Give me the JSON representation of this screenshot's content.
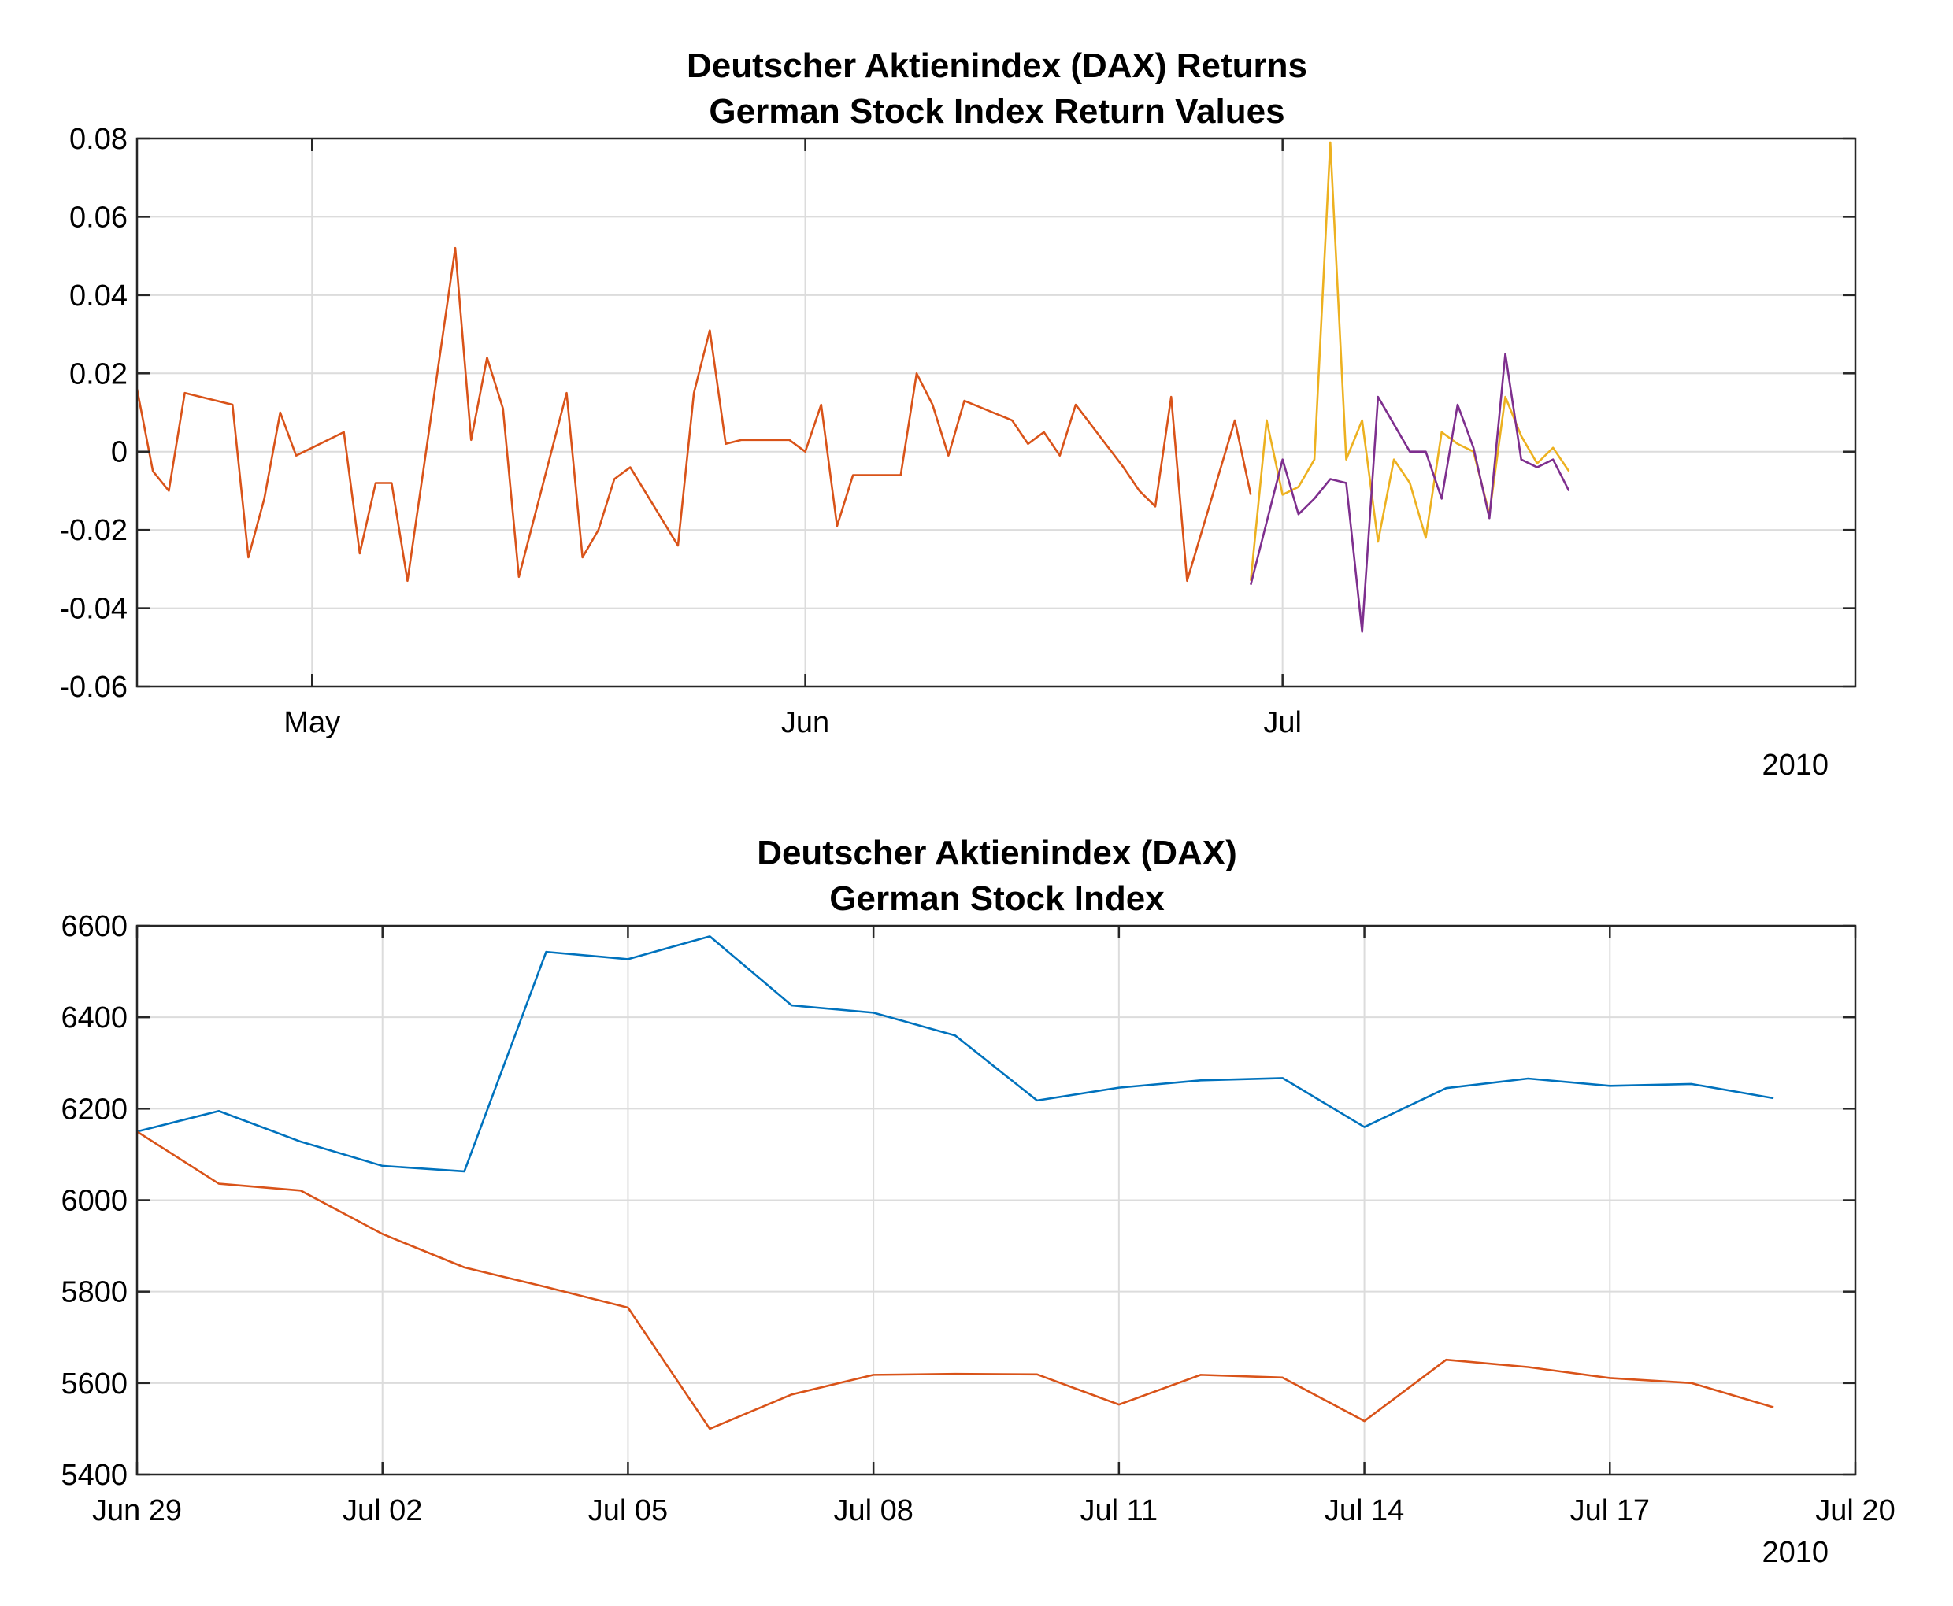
{
  "chart_data": [
    {
      "type": "line",
      "title": "Deutscher Aktienindex (DAX) Returns",
      "subtitle": "German Stock Index Return Values",
      "xlabel": "",
      "ylabel": "",
      "ylim": [
        -0.06,
        0.08
      ],
      "yticks": [
        -0.06,
        -0.04,
        -0.02,
        0,
        0.02,
        0.04,
        0.06,
        0.08
      ],
      "ytick_labels": [
        "-0.06",
        "-0.04",
        "-0.02",
        "0",
        "0.02",
        "0.04",
        "0.06",
        "0.08"
      ],
      "xlim": [
        "2010-04-20",
        "2010-08-06"
      ],
      "xticks": [
        "2010-05-01",
        "2010-06-01",
        "2010-07-01"
      ],
      "xtick_labels": [
        "May",
        "Jun",
        "Jul"
      ],
      "x_year_label": "2010",
      "grid": true,
      "series": [
        {
          "color": "#D95319",
          "x": [
            "2010-04-20",
            "2010-04-21",
            "2010-04-22",
            "2010-04-23",
            "2010-04-26",
            "2010-04-27",
            "2010-04-28",
            "2010-04-29",
            "2010-04-30",
            "2010-05-03",
            "2010-05-04",
            "2010-05-05",
            "2010-05-06",
            "2010-05-07",
            "2010-05-10",
            "2010-05-11",
            "2010-05-12",
            "2010-05-13",
            "2010-05-14",
            "2010-05-17",
            "2010-05-18",
            "2010-05-19",
            "2010-05-20",
            "2010-05-21",
            "2010-05-24",
            "2010-05-25",
            "2010-05-26",
            "2010-05-27",
            "2010-05-28",
            "2010-05-31",
            "2010-06-01",
            "2010-06-02",
            "2010-06-03",
            "2010-06-04",
            "2010-06-07",
            "2010-06-08",
            "2010-06-09",
            "2010-06-10",
            "2010-06-11",
            "2010-06-14",
            "2010-06-15",
            "2010-06-16",
            "2010-06-17",
            "2010-06-18",
            "2010-06-21",
            "2010-06-22",
            "2010-06-23",
            "2010-06-24",
            "2010-06-25",
            "2010-06-28",
            "2010-06-29"
          ],
          "values": [
            0.016,
            -0.005,
            -0.01,
            0.015,
            0.012,
            -0.027,
            -0.012,
            0.01,
            -0.001,
            0.005,
            -0.026,
            -0.008,
            -0.008,
            -0.033,
            0.052,
            0.003,
            0.024,
            0.011,
            -0.032,
            0.015,
            -0.027,
            -0.02,
            -0.007,
            -0.004,
            -0.024,
            0.015,
            0.031,
            0.002,
            0.003,
            0.003,
            0.0,
            0.012,
            -0.019,
            -0.006,
            -0.006,
            0.02,
            0.012,
            -0.001,
            0.013,
            0.008,
            0.002,
            0.005,
            -0.001,
            0.012,
            -0.004,
            -0.01,
            -0.014,
            0.014,
            -0.033,
            0.008,
            -0.011
          ]
        },
        {
          "color": "#EDB120",
          "x": [
            "2010-06-29",
            "2010-06-30",
            "2010-07-01",
            "2010-07-02",
            "2010-07-03",
            "2010-07-04",
            "2010-07-05",
            "2010-07-06",
            "2010-07-07",
            "2010-07-08",
            "2010-07-09",
            "2010-07-10",
            "2010-07-11",
            "2010-07-12",
            "2010-07-13",
            "2010-07-14",
            "2010-07-15",
            "2010-07-16",
            "2010-07-17",
            "2010-07-18",
            "2010-07-19"
          ],
          "values": [
            -0.033,
            0.008,
            -0.011,
            -0.009,
            -0.002,
            0.079,
            -0.002,
            0.008,
            -0.023,
            -0.002,
            -0.008,
            -0.022,
            0.005,
            0.002,
            0.0,
            -0.016,
            0.014,
            0.004,
            -0.003,
            0.001,
            -0.005
          ]
        },
        {
          "color": "#7E2F8E",
          "x": [
            "2010-06-29",
            "2010-07-01",
            "2010-07-02",
            "2010-07-03",
            "2010-07-04",
            "2010-07-05",
            "2010-07-06",
            "2010-07-07",
            "2010-07-08",
            "2010-07-09",
            "2010-07-10",
            "2010-07-11",
            "2010-07-12",
            "2010-07-13",
            "2010-07-14",
            "2010-07-15",
            "2010-07-16",
            "2010-07-17",
            "2010-07-18",
            "2010-07-19"
          ],
          "values": [
            -0.034,
            -0.002,
            -0.016,
            -0.012,
            -0.007,
            -0.008,
            -0.046,
            0.014,
            0.007,
            0.0,
            0.0,
            -0.012,
            0.012,
            0.001,
            -0.017,
            0.025,
            -0.002,
            -0.004,
            -0.002,
            -0.01
          ]
        }
      ]
    },
    {
      "type": "line",
      "title": "Deutscher Aktienindex (DAX)",
      "subtitle": "German Stock Index",
      "xlabel": "",
      "ylabel": "",
      "ylim": [
        5400,
        6600
      ],
      "yticks": [
        5400,
        5600,
        5800,
        6000,
        6200,
        6400,
        6600
      ],
      "ytick_labels": [
        "5400",
        "5600",
        "5800",
        "6000",
        "6200",
        "6400",
        "6600"
      ],
      "xlim": [
        "2010-06-29",
        "2010-07-20"
      ],
      "xticks": [
        "2010-06-29",
        "2010-07-02",
        "2010-07-05",
        "2010-07-08",
        "2010-07-11",
        "2010-07-14",
        "2010-07-17",
        "2010-07-20"
      ],
      "xtick_labels": [
        "Jun 29",
        "Jul 02",
        "Jul 05",
        "Jul 08",
        "Jul 11",
        "Jul 14",
        "Jul 17",
        "Jul 20"
      ],
      "x_year_label": "2010",
      "grid": true,
      "x": [
        "2010-06-29",
        "2010-06-30",
        "2010-07-01",
        "2010-07-02",
        "2010-07-03",
        "2010-07-04",
        "2010-07-05",
        "2010-07-06",
        "2010-07-07",
        "2010-07-08",
        "2010-07-09",
        "2010-07-10",
        "2010-07-11",
        "2010-07-12",
        "2010-07-13",
        "2010-07-14",
        "2010-07-15",
        "2010-07-16",
        "2010-07-17",
        "2010-07-18",
        "2010-07-19"
      ],
      "series": [
        {
          "color": "#0072BD",
          "values": [
            6150,
            6195,
            6128,
            6075,
            6063,
            6543,
            6527,
            6577,
            6426,
            6410,
            6360,
            6218,
            6246,
            6262,
            6267,
            6160,
            6245,
            6266,
            6250,
            6254,
            6223
          ]
        },
        {
          "color": "#D95319",
          "values": [
            6150,
            6036,
            6021,
            5926,
            5853,
            5810,
            5765,
            5500,
            5575,
            5618,
            5620,
            5619,
            5553,
            5618,
            5612,
            5517,
            5651,
            5635,
            5611,
            5600,
            5547
          ]
        }
      ]
    }
  ]
}
